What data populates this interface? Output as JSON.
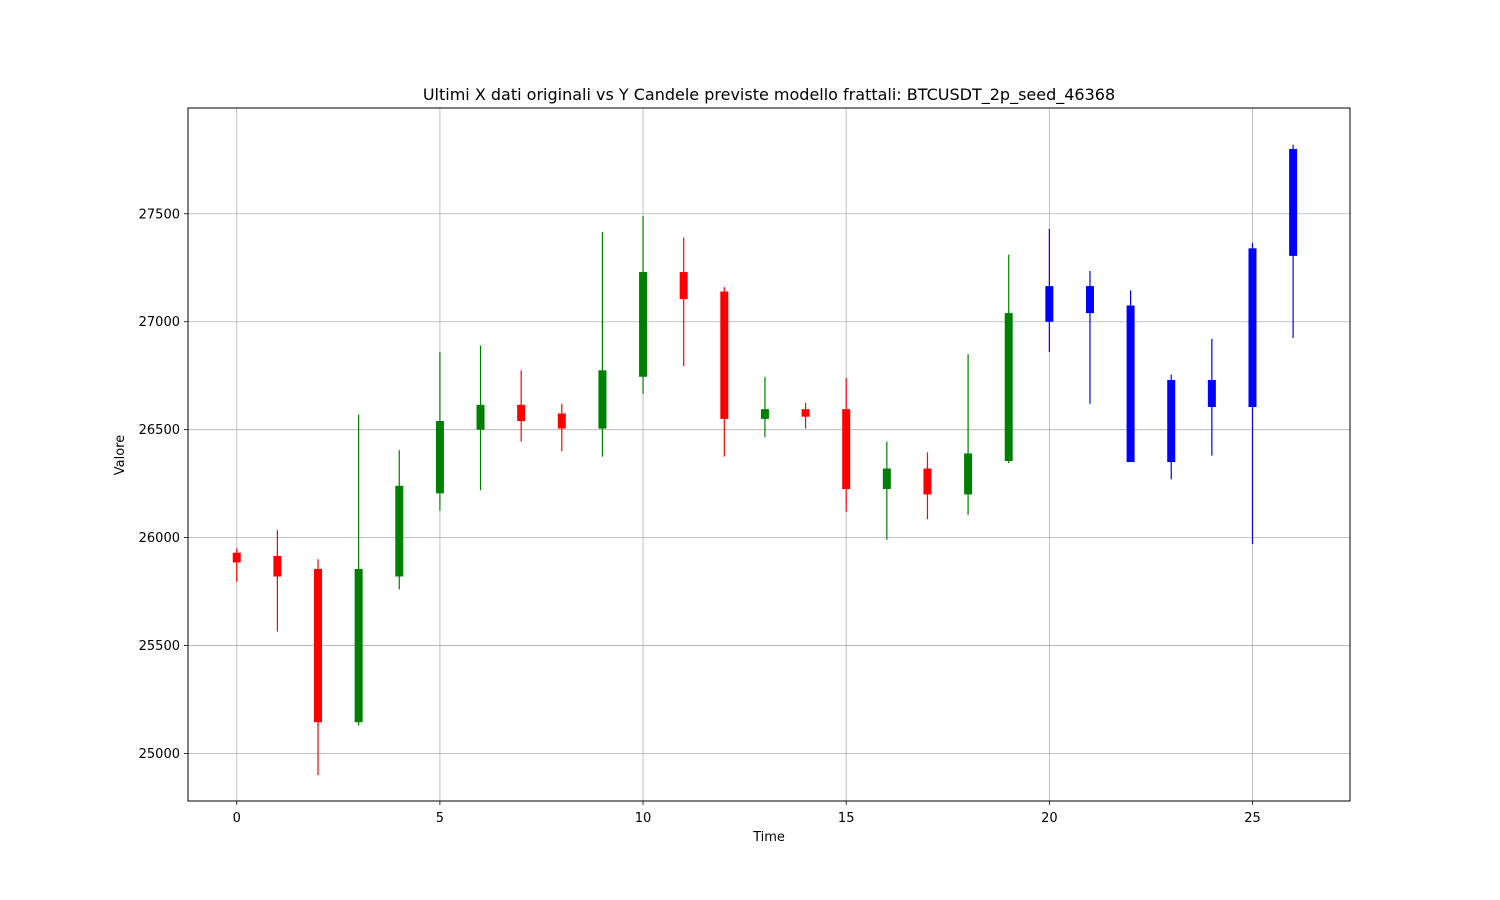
{
  "chart_data": {
    "type": "candlestick",
    "title": "Ultimi X dati originali vs Y Candele previste modello frattali: BTCUSDT_2p_seed_46368",
    "xlabel": "Time",
    "ylabel": "Valore",
    "xlim": [
      -1.2,
      27.4
    ],
    "ylim": [
      24780,
      27990
    ],
    "xticks": [
      0,
      5,
      10,
      15,
      20,
      25
    ],
    "yticks": [
      25000,
      25500,
      26000,
      26500,
      27000,
      27500
    ],
    "grid": true,
    "colors": {
      "up": "#008000",
      "down": "#ff0000",
      "predicted": "#0000ff",
      "grid": "#b0b0b0"
    },
    "candles": [
      {
        "t": 0,
        "open": 25930,
        "close": 25885,
        "high": 25950,
        "low": 25795,
        "kind": "down"
      },
      {
        "t": 1,
        "open": 25915,
        "close": 25820,
        "high": 26035,
        "low": 25565,
        "kind": "down"
      },
      {
        "t": 2,
        "open": 25855,
        "close": 25145,
        "high": 25900,
        "low": 24900,
        "kind": "down"
      },
      {
        "t": 3,
        "open": 25145,
        "close": 25855,
        "high": 26570,
        "low": 25130,
        "kind": "up"
      },
      {
        "t": 4,
        "open": 25820,
        "close": 26240,
        "high": 26405,
        "low": 25760,
        "kind": "up"
      },
      {
        "t": 5,
        "open": 26205,
        "close": 26540,
        "high": 26860,
        "low": 26125,
        "kind": "up"
      },
      {
        "t": 6,
        "open": 26500,
        "close": 26615,
        "high": 26890,
        "low": 26220,
        "kind": "up"
      },
      {
        "t": 7,
        "open": 26615,
        "close": 26540,
        "high": 26775,
        "low": 26445,
        "kind": "down"
      },
      {
        "t": 8,
        "open": 26575,
        "close": 26505,
        "high": 26620,
        "low": 26400,
        "kind": "down"
      },
      {
        "t": 9,
        "open": 26505,
        "close": 26775,
        "high": 27415,
        "low": 26375,
        "kind": "up"
      },
      {
        "t": 10,
        "open": 26745,
        "close": 27230,
        "high": 27490,
        "low": 26665,
        "kind": "up"
      },
      {
        "t": 11,
        "open": 27230,
        "close": 27105,
        "high": 27390,
        "low": 26795,
        "kind": "down"
      },
      {
        "t": 12,
        "open": 27140,
        "close": 26550,
        "high": 27160,
        "low": 26375,
        "kind": "down"
      },
      {
        "t": 13,
        "open": 26550,
        "close": 26595,
        "high": 26745,
        "low": 26465,
        "kind": "up"
      },
      {
        "t": 14,
        "open": 26595,
        "close": 26560,
        "high": 26625,
        "low": 26505,
        "kind": "down"
      },
      {
        "t": 15,
        "open": 26595,
        "close": 26225,
        "high": 26740,
        "low": 26120,
        "kind": "down"
      },
      {
        "t": 16,
        "open": 26225,
        "close": 26320,
        "high": 26445,
        "low": 25990,
        "kind": "up"
      },
      {
        "t": 17,
        "open": 26320,
        "close": 26200,
        "high": 26395,
        "low": 26085,
        "kind": "down"
      },
      {
        "t": 18,
        "open": 26200,
        "close": 26390,
        "high": 26850,
        "low": 26105,
        "kind": "up"
      },
      {
        "t": 19,
        "open": 26355,
        "close": 27040,
        "high": 27310,
        "low": 26345,
        "kind": "up"
      },
      {
        "t": 20,
        "open": 27000,
        "close": 27165,
        "high": 27430,
        "low": 26860,
        "kind": "predicted"
      },
      {
        "t": 21,
        "open": 27040,
        "close": 27165,
        "high": 27235,
        "low": 26620,
        "kind": "predicted"
      },
      {
        "t": 22,
        "open": 26350,
        "close": 27075,
        "high": 27145,
        "low": 26350,
        "kind": "predicted"
      },
      {
        "t": 23,
        "open": 26350,
        "close": 26730,
        "high": 26755,
        "low": 26270,
        "kind": "predicted"
      },
      {
        "t": 24,
        "open": 26605,
        "close": 26730,
        "high": 26920,
        "low": 26380,
        "kind": "predicted"
      },
      {
        "t": 25,
        "open": 26605,
        "close": 27340,
        "high": 27365,
        "low": 25970,
        "kind": "predicted"
      },
      {
        "t": 26,
        "open": 27305,
        "close": 27800,
        "high": 27820,
        "low": 26925,
        "kind": "predicted"
      }
    ]
  }
}
